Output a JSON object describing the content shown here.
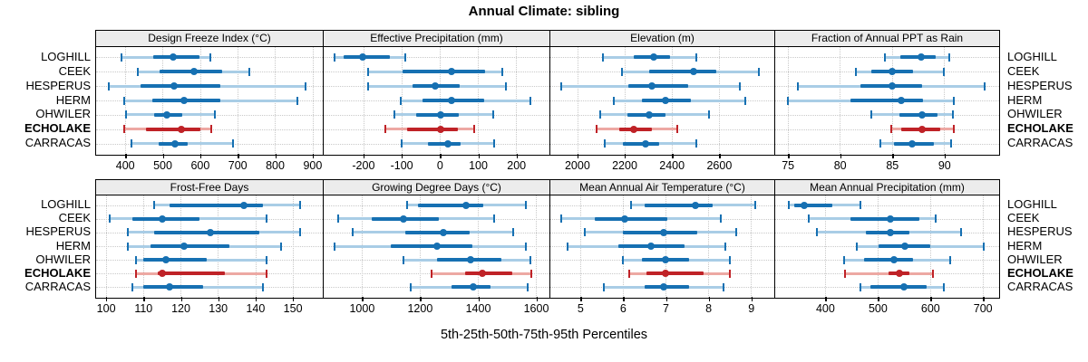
{
  "title": "Annual Climate: sibling",
  "xlabel": "5th-25th-50th-75th-95th Percentiles",
  "sites": [
    "LOGHILL",
    "CEEK",
    "HESPERUS",
    "HERM",
    "OHWILER",
    "ECHOLAKE",
    "CARRACAS"
  ],
  "highlight_site": "ECHOLAKE",
  "colors": {
    "series": "#1670b2",
    "series_light": "#a9cde6",
    "highlight": "#bf2227",
    "highlight_light": "#eda8a3",
    "header_bg": "#ececec",
    "grid": "#c9c9c9",
    "border": "#000000"
  },
  "chart_data": [
    {
      "type": "dotplot-interval",
      "title": "Design Freeze Index (°C)",
      "row": 0,
      "col": 0,
      "xlim": [
        323,
        926
      ],
      "ticks": [
        400,
        500,
        600,
        700,
        800,
        900
      ],
      "values_are": [
        "p5",
        "p25",
        "p50",
        "p75",
        "p95"
      ],
      "series": [
        {
          "site": "LOGHILL",
          "values": [
            390,
            476,
            528,
            599,
            627
          ]
        },
        {
          "site": "CEEK",
          "values": [
            435,
            492,
            585,
            659,
            733
          ]
        },
        {
          "site": "HESPERUS",
          "values": [
            357,
            442,
            532,
            655,
            881
          ]
        },
        {
          "site": "HERM",
          "values": [
            398,
            472,
            558,
            655,
            861
          ]
        },
        {
          "site": "OHWILER",
          "values": [
            403,
            478,
            512,
            552,
            639
          ]
        },
        {
          "site": "ECHOLAKE",
          "values": [
            398,
            455,
            550,
            601,
            631
          ]
        },
        {
          "site": "CARRACAS",
          "values": [
            418,
            490,
            534,
            567,
            688
          ]
        }
      ]
    },
    {
      "type": "dotplot-interval",
      "title": "Effective Precipitation (mm)",
      "row": 0,
      "col": 1,
      "xlim": [
        -303,
        285
      ],
      "ticks": [
        -200,
        -100,
        0,
        100,
        200
      ],
      "values_are": [
        "p5",
        "p25",
        "p50",
        "p75",
        "p95"
      ],
      "series": [
        {
          "site": "LOGHILL",
          "values": [
            -274,
            -250,
            -201,
            -129,
            -90
          ]
        },
        {
          "site": "CEEK",
          "values": [
            -186,
            -96,
            31,
            119,
            164
          ]
        },
        {
          "site": "HESPERUS",
          "values": [
            -186,
            -70,
            -12,
            52,
            172
          ]
        },
        {
          "site": "HERM",
          "values": [
            -101,
            -46,
            31,
            117,
            236
          ]
        },
        {
          "site": "OHWILER",
          "values": [
            -118,
            -61,
            3,
            50,
            139
          ]
        },
        {
          "site": "ECHOLAKE",
          "values": [
            -141,
            -86,
            2,
            47,
            89
          ]
        },
        {
          "site": "CARRACAS",
          "values": [
            -99,
            -31,
            21,
            56,
            143
          ]
        }
      ]
    },
    {
      "type": "dotplot-interval",
      "title": "Elevation (m)",
      "row": 0,
      "col": 2,
      "xlim": [
        1887,
        2831
      ],
      "ticks": [
        2000,
        2200,
        2400,
        2600
      ],
      "values_are": [
        "p5",
        "p25",
        "p50",
        "p75",
        "p95"
      ],
      "series": [
        {
          "site": "LOGHILL",
          "values": [
            2109,
            2241,
            2324,
            2394,
            2505
          ]
        },
        {
          "site": "CEEK",
          "values": [
            2188,
            2305,
            2491,
            2590,
            2768
          ]
        },
        {
          "site": "HESPERUS",
          "values": [
            1933,
            2218,
            2317,
            2470,
            2688
          ]
        },
        {
          "site": "HERM",
          "values": [
            2155,
            2273,
            2372,
            2482,
            2713
          ]
        },
        {
          "site": "OHWILER",
          "values": [
            2099,
            2213,
            2305,
            2375,
            2556
          ]
        },
        {
          "site": "ECHOLAKE",
          "values": [
            2082,
            2180,
            2238,
            2317,
            2425
          ]
        },
        {
          "site": "CARRACAS",
          "values": [
            2117,
            2193,
            2288,
            2349,
            2505
          ]
        }
      ]
    },
    {
      "type": "dotplot-interval",
      "title": "Fraction of Annual PPT as Rain",
      "row": 0,
      "col": 3,
      "xlim": [
        73.8,
        95.2
      ],
      "ticks": [
        75,
        80,
        85,
        90
      ],
      "values_are": [
        "p5",
        "p25",
        "p50",
        "p75",
        "p95"
      ],
      "series": [
        {
          "site": "LOGHILL",
          "values": [
            84.3,
            85.8,
            87.8,
            89.2,
            90.5
          ]
        },
        {
          "site": "CEEK",
          "values": [
            81.5,
            83.0,
            85.0,
            87.0,
            90.0
          ]
        },
        {
          "site": "HESPERUS",
          "values": [
            76.0,
            82.0,
            85.0,
            87.9,
            93.9
          ]
        },
        {
          "site": "HERM",
          "values": [
            75.0,
            81.0,
            85.9,
            88.0,
            90.9
          ]
        },
        {
          "site": "OHWILER",
          "values": [
            83.0,
            85.7,
            87.9,
            89.4,
            90.8
          ]
        },
        {
          "site": "ECHOLAKE",
          "values": [
            84.9,
            85.9,
            87.9,
            89.6,
            90.9
          ]
        },
        {
          "site": "CARRACAS",
          "values": [
            83.9,
            85.2,
            86.9,
            89.0,
            90.7
          ]
        }
      ]
    },
    {
      "type": "dotplot-interval",
      "title": "Frost-Free Days",
      "row": 1,
      "col": 0,
      "xlim": [
        97.4,
        157.9
      ],
      "ticks": [
        100,
        110,
        120,
        130,
        140,
        150
      ],
      "values_are": [
        "p5",
        "p25",
        "p50",
        "p75",
        "p95"
      ],
      "series": [
        {
          "site": "LOGHILL",
          "values": [
            113,
            117,
            137,
            142,
            152
          ]
        },
        {
          "site": "CEEK",
          "values": [
            101,
            107,
            115,
            125,
            143
          ]
        },
        {
          "site": "HESPERUS",
          "values": [
            106,
            113,
            128,
            141,
            152
          ]
        },
        {
          "site": "HERM",
          "values": [
            106,
            112,
            121,
            133,
            147
          ]
        },
        {
          "site": "OHWILER",
          "values": [
            108,
            110,
            116,
            127,
            143
          ]
        },
        {
          "site": "ECHOLAKE",
          "values": [
            108,
            114,
            115,
            132,
            143
          ]
        },
        {
          "site": "CARRACAS",
          "values": [
            107,
            110,
            117,
            126,
            142
          ]
        }
      ]
    },
    {
      "type": "dotplot-interval",
      "title": "Growing Degree Days (°C)",
      "row": 1,
      "col": 1,
      "xlim": [
        869,
        1644
      ],
      "ticks": [
        1000,
        1200,
        1400,
        1600
      ],
      "values_are": [
        "p5",
        "p25",
        "p50",
        "p75",
        "p95"
      ],
      "series": [
        {
          "site": "LOGHILL",
          "values": [
            1155,
            1195,
            1360,
            1420,
            1565
          ]
        },
        {
          "site": "CEEK",
          "values": [
            920,
            1035,
            1145,
            1265,
            1455
          ]
        },
        {
          "site": "HESPERUS",
          "values": [
            970,
            1150,
            1280,
            1370,
            1520
          ]
        },
        {
          "site": "HERM",
          "values": [
            905,
            1100,
            1260,
            1380,
            1565
          ]
        },
        {
          "site": "OHWILER",
          "values": [
            1145,
            1260,
            1375,
            1480,
            1580
          ]
        },
        {
          "site": "ECHOLAKE",
          "values": [
            1240,
            1355,
            1415,
            1520,
            1585
          ]
        },
        {
          "site": "CARRACAS",
          "values": [
            1170,
            1310,
            1385,
            1445,
            1570
          ]
        }
      ]
    },
    {
      "type": "dotplot-interval",
      "title": "Mean Annual Air Temperature (°C)",
      "row": 1,
      "col": 2,
      "xlim": [
        4.3,
        9.53
      ],
      "ticks": [
        5,
        6,
        7,
        8,
        9
      ],
      "values_are": [
        "p5",
        "p25",
        "p50",
        "p75",
        "p95"
      ],
      "series": [
        {
          "site": "LOGHILL",
          "values": [
            6.2,
            6.5,
            7.7,
            8.1,
            9.1
          ]
        },
        {
          "site": "CEEK",
          "values": [
            4.55,
            5.35,
            6.05,
            7.05,
            8.3
          ]
        },
        {
          "site": "HESPERUS",
          "values": [
            5.1,
            6.0,
            6.95,
            7.75,
            8.65
          ]
        },
        {
          "site": "HERM",
          "values": [
            4.7,
            5.9,
            6.65,
            7.45,
            8.4
          ]
        },
        {
          "site": "OHWILER",
          "values": [
            6.0,
            6.45,
            7.0,
            7.55,
            8.5
          ]
        },
        {
          "site": "ECHOLAKE",
          "values": [
            6.15,
            6.55,
            7.0,
            7.9,
            8.5
          ]
        },
        {
          "site": "CARRACAS",
          "values": [
            5.55,
            6.5,
            6.95,
            7.55,
            8.35
          ]
        }
      ]
    },
    {
      "type": "dotplot-interval",
      "title": "Mean Annual Precipitation (mm)",
      "row": 1,
      "col": 3,
      "xlim": [
        305,
        730
      ],
      "ticks": [
        400,
        500,
        600,
        700
      ],
      "values_are": [
        "p5",
        "p25",
        "p50",
        "p75",
        "p95"
      ],
      "series": [
        {
          "site": "LOGHILL",
          "values": [
            330,
            341,
            361,
            414,
            468
          ]
        },
        {
          "site": "CEEK",
          "values": [
            369,
            449,
            524,
            580,
            610
          ]
        },
        {
          "site": "HESPERUS",
          "values": [
            384,
            477,
            524,
            560,
            659
          ]
        },
        {
          "site": "HERM",
          "values": [
            460,
            502,
            552,
            601,
            702
          ]
        },
        {
          "site": "OHWILER",
          "values": [
            436,
            474,
            531,
            568,
            638
          ]
        },
        {
          "site": "ECHOLAKE",
          "values": [
            438,
            521,
            542,
            561,
            605
          ]
        },
        {
          "site": "CARRACAS",
          "values": [
            468,
            486,
            550,
            593,
            626
          ]
        }
      ]
    }
  ]
}
